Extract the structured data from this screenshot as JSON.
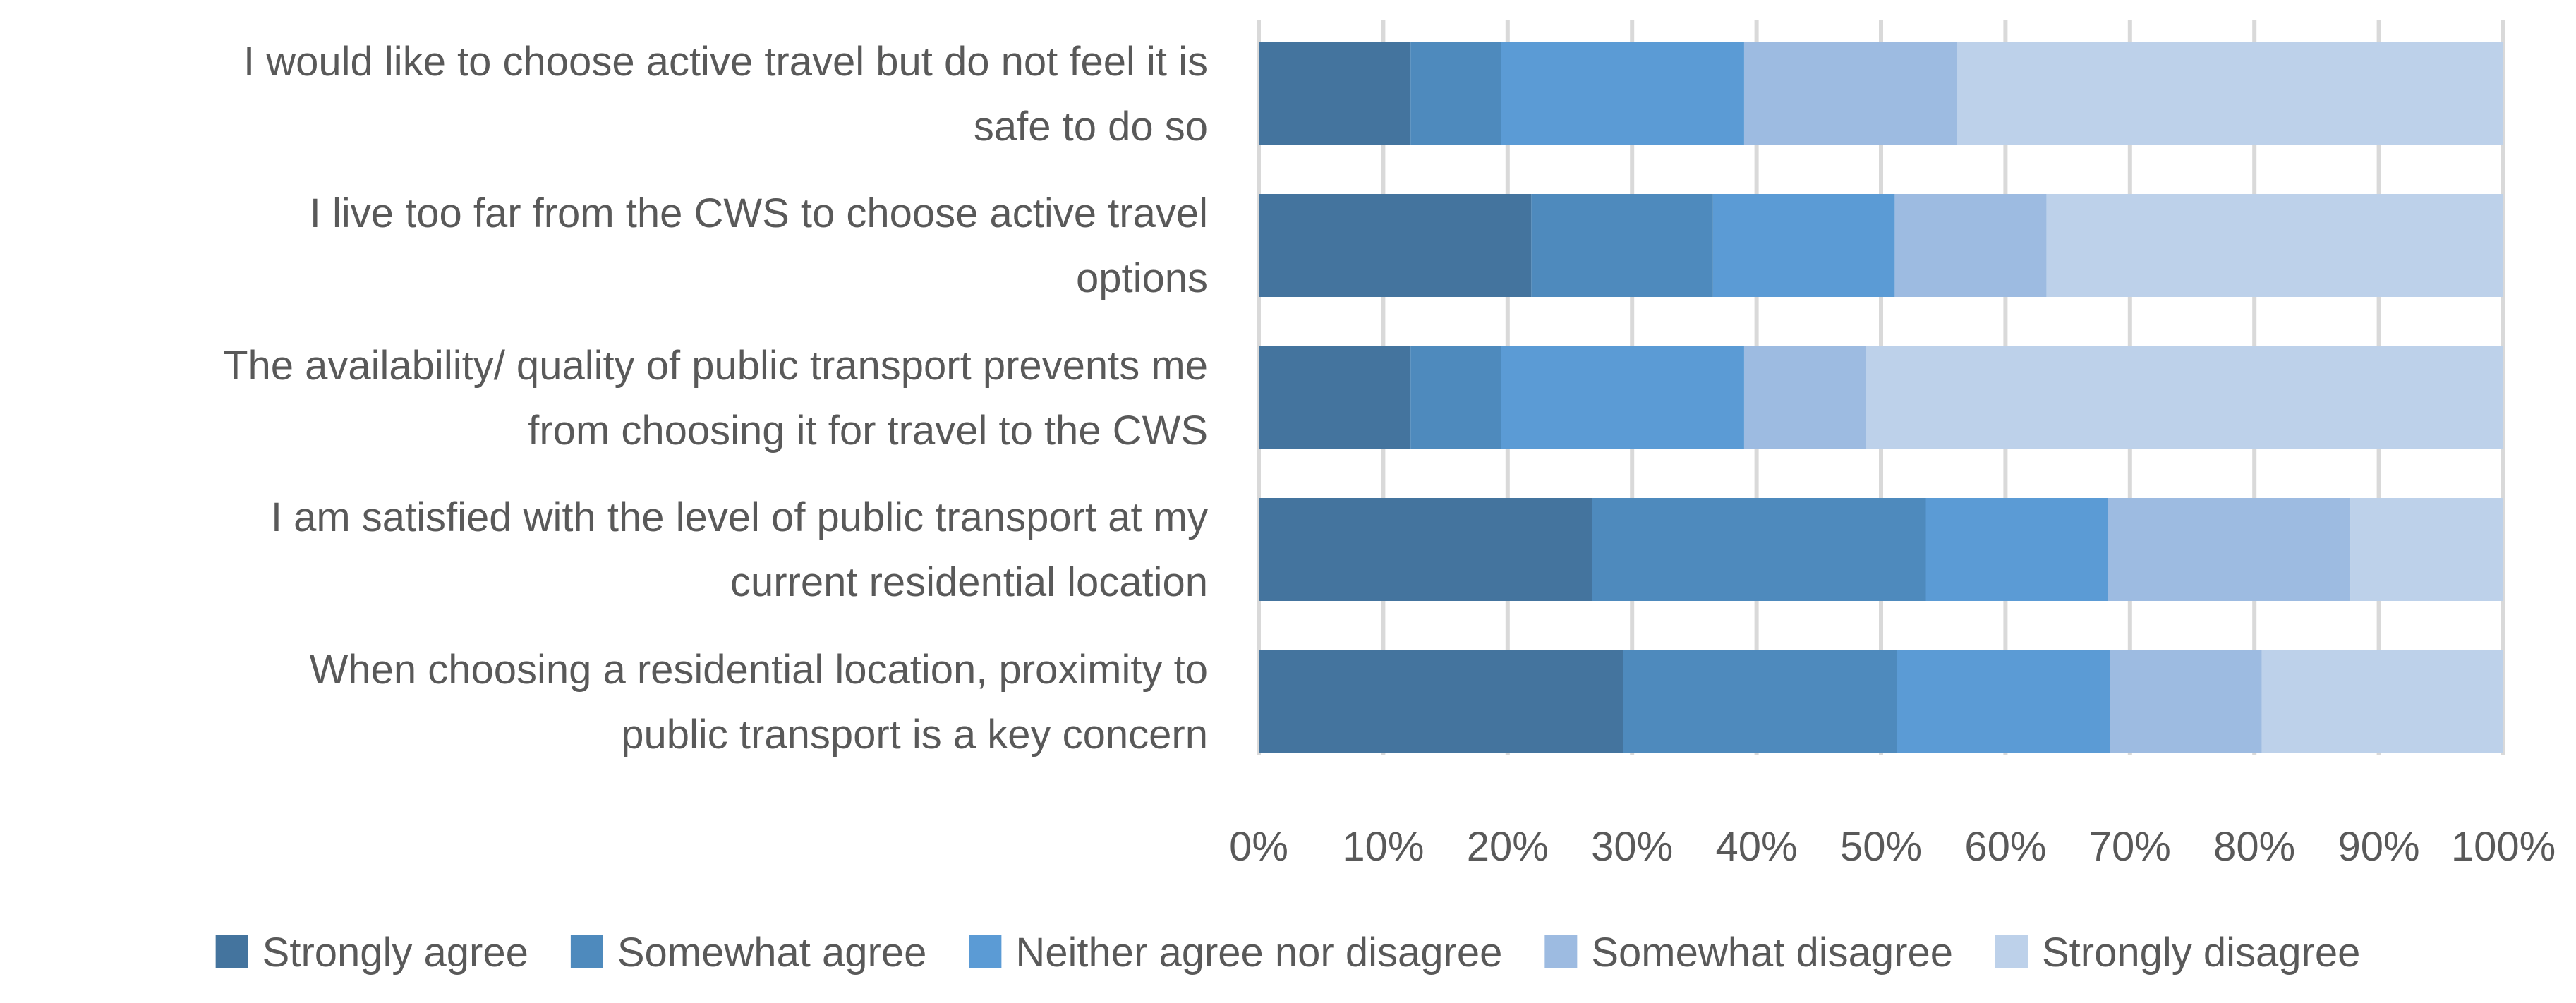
{
  "chart_data": {
    "type": "bar",
    "orientation": "horizontal",
    "stacked": "percent",
    "categories": [
      "I would like to choose active travel but do not feel it is safe to do so",
      "I live too far from the CWS to choose active travel options",
      "The availability/ quality of public transport prevents me from choosing it for travel to the CWS",
      "I am satisfied with the level of public transport at my current residential location",
      "When choosing a residential location, proximity to public transport is a key concern"
    ],
    "category_lines": [
      [
        "I would like to choose active travel but do not feel it is",
        "safe to do so"
      ],
      [
        "I live too far from the CWS to choose active travel",
        "options"
      ],
      [
        "The availability/ quality of public transport prevents me",
        "from choosing it for travel to the CWS"
      ],
      [
        "I am satisfied with the level of public transport at my",
        "current residential location"
      ],
      [
        "When choosing a residential location, proximity to",
        "public transport is a key concern"
      ]
    ],
    "series": [
      {
        "name": "Strongly agree",
        "color": "#44749e",
        "values": [
          12.2,
          21.9,
          12.2,
          26.8,
          29.3
        ]
      },
      {
        "name": "Somewhat agree",
        "color": "#4e8abd",
        "values": [
          7.3,
          14.6,
          7.3,
          26.8,
          22.0
        ]
      },
      {
        "name": "Neither agree nor disagree",
        "color": "#5b9bd5",
        "values": [
          19.5,
          14.6,
          19.5,
          14.6,
          17.1
        ]
      },
      {
        "name": "Somewhat disagree",
        "color": "#9dbbe1",
        "values": [
          17.1,
          12.2,
          9.8,
          19.5,
          12.2
        ]
      },
      {
        "name": "Strongly disagree",
        "color": "#bdd1ea",
        "values": [
          43.9,
          36.7,
          51.2,
          12.3,
          19.4
        ]
      }
    ],
    "x_ticks": [
      "0%",
      "10%",
      "20%",
      "30%",
      "40%",
      "50%",
      "60%",
      "70%",
      "80%",
      "90%",
      "100%"
    ],
    "xlim": [
      0,
      100
    ],
    "grid": true,
    "legend_position": "bottom",
    "title": "",
    "xlabel": "",
    "ylabel": ""
  }
}
